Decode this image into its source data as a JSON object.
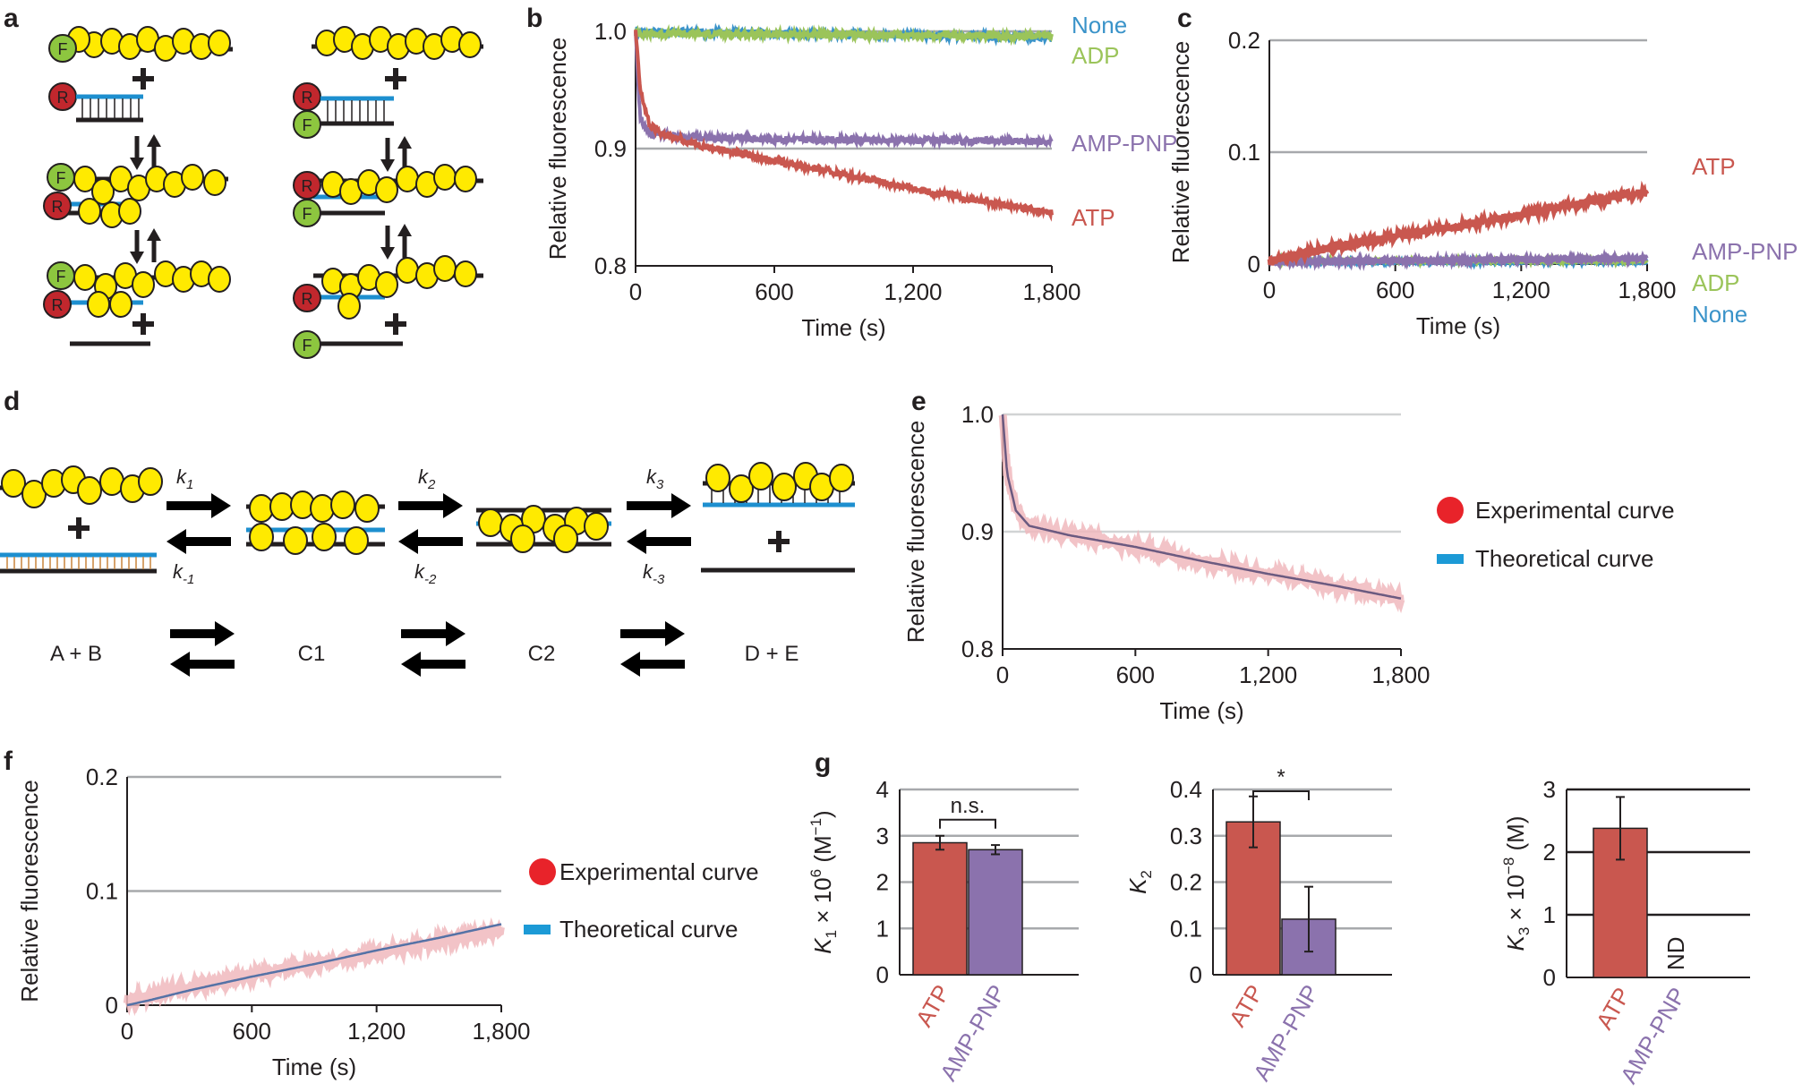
{
  "panel_labels": {
    "a": "a",
    "b": "b",
    "c": "c",
    "d": "d",
    "e": "e",
    "f": "f",
    "g": "g"
  },
  "colors": {
    "fret_green": "#8dc63f",
    "rox_red": "#c1272d",
    "cyan_strand": "#1d8fcf",
    "sphere_yellow": "#ffea00",
    "atp": "#c9574f",
    "amp_pnp": "#8b72ad",
    "adp": "#9bc45a",
    "none": "#3a93c9",
    "grid": "#a7a9ac"
  },
  "panel_a": {
    "fluor_label": "F",
    "quencher_label": "R"
  },
  "panel_d": {
    "rates": [
      {
        "fwd": "k",
        "fwd_sub": "1",
        "rev": "k",
        "rev_sub": "-1"
      },
      {
        "fwd": "k",
        "fwd_sub": "2",
        "rev": "k",
        "rev_sub": "-2"
      },
      {
        "fwd": "k",
        "fwd_sub": "3",
        "rev": "k",
        "rev_sub": "-3"
      }
    ],
    "states": [
      "A + B",
      "C1",
      "C2",
      "D + E"
    ]
  },
  "chart_data": [
    {
      "id": "b",
      "type": "line",
      "xlabel": "Time (s)",
      "ylabel": "Relative fluorescence",
      "xlim": [
        0,
        1800
      ],
      "ylim": [
        0.8,
        1.0
      ],
      "xticks": [
        0,
        600,
        1200,
        1800
      ],
      "xtick_labels": [
        "0",
        "600",
        "1,200",
        "1,800"
      ],
      "yticks": [
        0.8,
        0.9,
        1.0
      ],
      "ytick_labels": [
        "0.8",
        "0.9",
        "1.0"
      ],
      "series": [
        {
          "name": "None",
          "x": [
            0,
            1800
          ],
          "values": [
            1.0,
            0.995
          ]
        },
        {
          "name": "ADP",
          "x": [
            0,
            1800
          ],
          "values": [
            0.998,
            0.996
          ]
        },
        {
          "name": "AMP-PNP",
          "x": [
            0,
            20,
            60,
            200,
            600,
            1200,
            1800
          ],
          "values": [
            1.0,
            0.925,
            0.913,
            0.91,
            0.908,
            0.907,
            0.906
          ]
        },
        {
          "name": "ATP",
          "x": [
            0,
            20,
            60,
            120,
            300,
            600,
            900,
            1200,
            1500,
            1800
          ],
          "values": [
            1.0,
            0.95,
            0.92,
            0.912,
            0.902,
            0.89,
            0.878,
            0.866,
            0.855,
            0.845
          ]
        }
      ]
    },
    {
      "id": "c",
      "type": "line",
      "xlabel": "Time (s)",
      "ylabel": "Relative fluorescence",
      "xlim": [
        0,
        1800
      ],
      "ylim": [
        0,
        0.2
      ],
      "xticks": [
        0,
        600,
        1200,
        1800
      ],
      "xtick_labels": [
        "0",
        "600",
        "1,200",
        "1,800"
      ],
      "yticks": [
        0,
        0.1,
        0.2
      ],
      "ytick_labels": [
        "0",
        "0.1",
        "0.2"
      ],
      "series": [
        {
          "name": "ATP",
          "x": [
            0,
            100,
            300,
            600,
            900,
            1200,
            1500,
            1800
          ],
          "values": [
            0.002,
            0.006,
            0.015,
            0.025,
            0.034,
            0.044,
            0.055,
            0.065
          ]
        },
        {
          "name": "AMP-PNP",
          "x": [
            0,
            1800
          ],
          "values": [
            0.002,
            0.005
          ]
        },
        {
          "name": "ADP",
          "x": [
            0,
            1800
          ],
          "values": [
            0.003,
            0.003
          ]
        },
        {
          "name": "None",
          "x": [
            0,
            1800
          ],
          "values": [
            0.002,
            0.002
          ]
        }
      ]
    },
    {
      "id": "e",
      "type": "line",
      "xlabel": "Time (s)",
      "ylabel": "Relative fluorescence",
      "xlim": [
        0,
        1800
      ],
      "ylim": [
        0.8,
        1.0
      ],
      "xticks": [
        0,
        600,
        1200,
        1800
      ],
      "xtick_labels": [
        "0",
        "600",
        "1,200",
        "1,800"
      ],
      "yticks": [
        0.8,
        0.9,
        1.0
      ],
      "ytick_labels": [
        "0.8",
        "0.9",
        "1.0"
      ],
      "legend": [
        "Experimental curve",
        "Theoretical curve"
      ],
      "series": [
        {
          "name": "Experimental curve",
          "x": [
            0,
            20,
            60,
            120,
            300,
            600,
            900,
            1200,
            1500,
            1800
          ],
          "values": [
            1.0,
            0.95,
            0.918,
            0.905,
            0.897,
            0.887,
            0.875,
            0.864,
            0.854,
            0.843
          ]
        },
        {
          "name": "Theoretical curve",
          "x": [
            0,
            20,
            60,
            120,
            300,
            600,
            900,
            1200,
            1500,
            1800
          ],
          "values": [
            1.0,
            0.95,
            0.918,
            0.905,
            0.897,
            0.887,
            0.875,
            0.864,
            0.854,
            0.843
          ]
        }
      ]
    },
    {
      "id": "f",
      "type": "line",
      "xlabel": "Time (s)",
      "ylabel": "Relative fluorescence",
      "xlim": [
        0,
        1800
      ],
      "ylim": [
        0,
        0.2
      ],
      "xticks": [
        0,
        600,
        1200,
        1800
      ],
      "xtick_labels": [
        "0",
        "600",
        "1,200",
        "1,800"
      ],
      "yticks": [
        0,
        0.1,
        0.2
      ],
      "ytick_labels": [
        "0",
        "0.1",
        "0.2"
      ],
      "legend": [
        "Experimental curve",
        "Theoretical curve"
      ],
      "series": [
        {
          "name": "Experimental curve",
          "x": [
            0,
            100,
            300,
            600,
            900,
            1200,
            1500,
            1800
          ],
          "values": [
            0.004,
            0.008,
            0.016,
            0.026,
            0.036,
            0.046,
            0.056,
            0.066
          ]
        },
        {
          "name": "Theoretical curve",
          "x": [
            0,
            100,
            300,
            600,
            900,
            1200,
            1500,
            1800
          ],
          "values": [
            0.0,
            0.004,
            0.013,
            0.025,
            0.036,
            0.048,
            0.059,
            0.071
          ]
        }
      ]
    },
    {
      "id": "g1",
      "type": "bar",
      "categories": [
        "ATP",
        "AMP-PNP"
      ],
      "values": [
        2.85,
        2.7
      ],
      "errors": [
        0.15,
        0.1
      ],
      "ylim": [
        0,
        4
      ],
      "yticks": [
        0,
        1,
        2,
        3,
        4
      ],
      "ylabel": "K",
      "ylabel_sub": "1",
      "ylabel_rest": " × 10",
      "ylabel_sup": "6",
      "ylabel_unit": " (M",
      "ylabel_unit_sup": "−1",
      "ylabel_close": ")",
      "annotation": "n.s."
    },
    {
      "id": "g2",
      "type": "bar",
      "categories": [
        "ATP",
        "AMP-PNP"
      ],
      "values": [
        0.33,
        0.12
      ],
      "errors": [
        0.055,
        0.07
      ],
      "ylim": [
        0,
        0.4
      ],
      "yticks": [
        0,
        0.1,
        0.2,
        0.3,
        0.4
      ],
      "ytick_labels": [
        "0",
        "0.1",
        "0.2",
        "0.3",
        "0.4"
      ],
      "ylabel": "K",
      "ylabel_sub": "2",
      "annotation": "*"
    },
    {
      "id": "g3",
      "type": "bar",
      "categories": [
        "ATP",
        "AMP-PNP"
      ],
      "values": [
        2.38,
        null
      ],
      "errors": [
        0.5,
        null
      ],
      "ylim": [
        0,
        3
      ],
      "yticks": [
        0,
        1,
        2,
        3
      ],
      "ylabel": "K",
      "ylabel_sub": "3",
      "ylabel_rest": " × 10",
      "ylabel_sup": "−8",
      "ylabel_unit": " (M)",
      "missing_label": "ND"
    }
  ]
}
